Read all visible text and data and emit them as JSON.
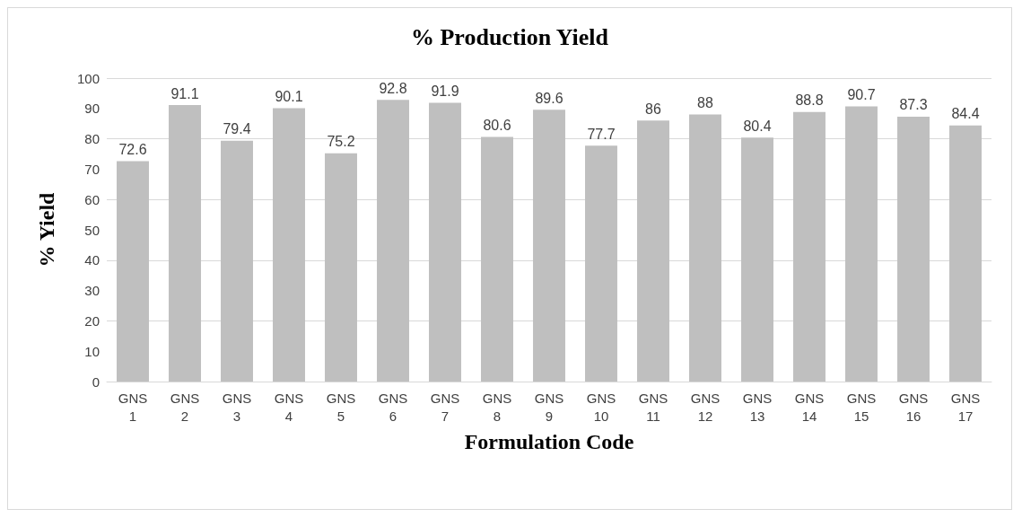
{
  "chart_data": {
    "type": "bar",
    "title": "% Production Yield",
    "xlabel": "Formulation Code",
    "ylabel": "% Yield",
    "categories": [
      "GNS 1",
      "GNS 2",
      "GNS 3",
      "GNS 4",
      "GNS 5",
      "GNS 6",
      "GNS 7",
      "GNS 8",
      "GNS 9",
      "GNS 10",
      "GNS 11",
      "GNS 12",
      "GNS 13",
      "GNS 14",
      "GNS 15",
      "GNS 16",
      "GNS 17"
    ],
    "values": [
      72.6,
      91.1,
      79.4,
      90.1,
      75.2,
      92.8,
      91.9,
      80.6,
      89.6,
      77.7,
      86,
      88,
      80.4,
      88.8,
      90.7,
      87.3,
      84.4
    ],
    "color": "#bfbfbf",
    "ylim": [
      0,
      100
    ],
    "yticks": [
      0,
      10,
      20,
      30,
      40,
      50,
      60,
      70,
      80,
      90,
      100
    ],
    "grid": "y",
    "data_labels": true
  }
}
